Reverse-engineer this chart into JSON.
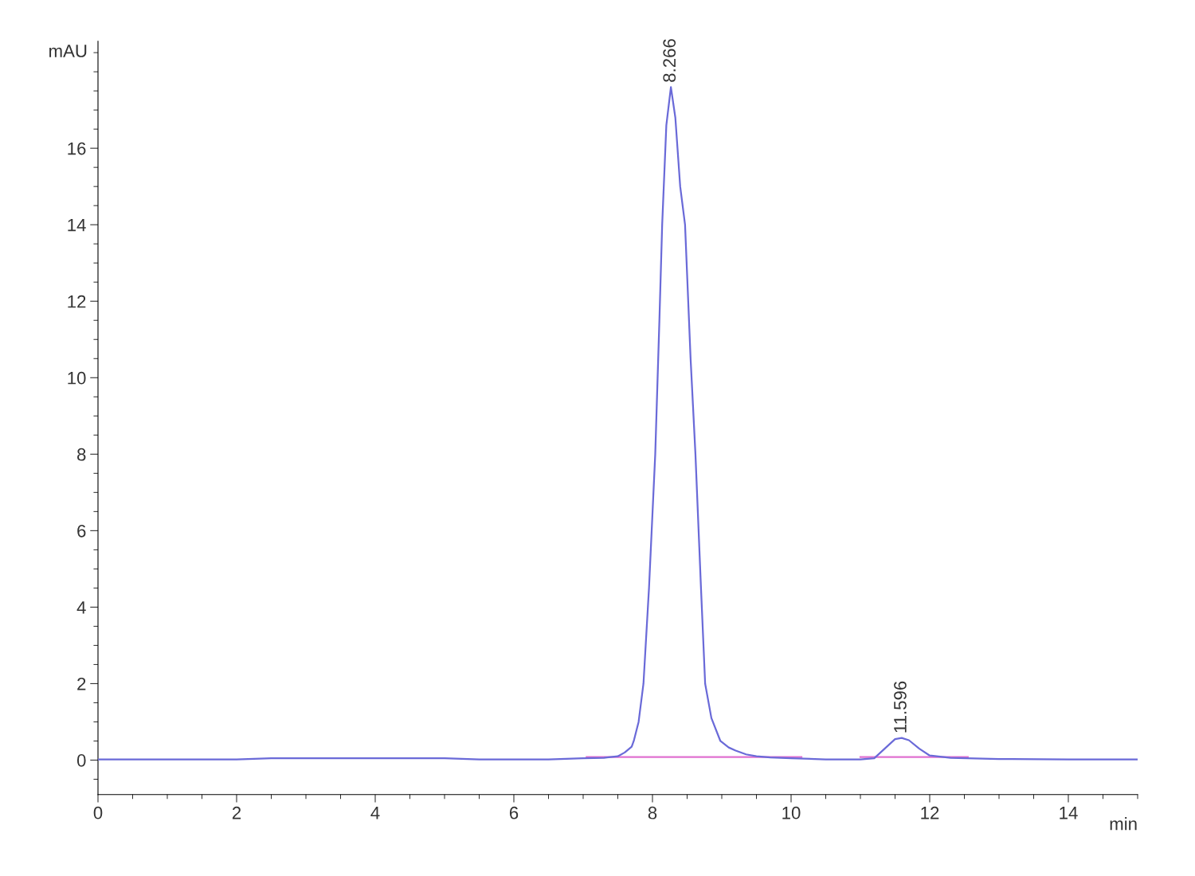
{
  "chart_data": {
    "type": "line",
    "ylabel": "mAU",
    "xlabel": "min",
    "xlim": [
      0,
      15
    ],
    "ylim": [
      -0.9,
      18.8
    ],
    "xticks": [
      0,
      2,
      4,
      6,
      8,
      10,
      12,
      14
    ],
    "yticks": [
      0,
      2,
      4,
      6,
      8,
      10,
      12,
      14,
      16
    ],
    "grid": false,
    "legend": false,
    "marker": "none",
    "line_style": "solid",
    "series": [
      {
        "color": "#6a6ad8",
        "x": [
          0,
          1,
          2,
          2.5,
          3,
          4,
          5,
          5.5,
          6,
          6.5,
          7,
          7.3,
          7.5,
          7.6,
          7.7,
          7.73,
          7.8,
          7.87,
          7.95,
          8.04,
          8.1,
          8.14,
          8.2,
          8.266,
          8.33,
          8.4,
          8.47,
          8.55,
          8.62,
          8.7,
          8.76,
          8.85,
          8.98,
          9.1,
          9.2,
          9.35,
          9.5,
          9.7,
          10,
          10.5,
          11,
          11.2,
          11.35,
          11.5,
          11.596,
          11.7,
          11.85,
          12,
          12.3,
          13,
          14,
          15
        ],
        "values": [
          0.02,
          0.02,
          0.02,
          0.05,
          0.05,
          0.05,
          0.05,
          0.02,
          0.02,
          0.02,
          0.05,
          0.06,
          0.1,
          0.2,
          0.35,
          0.5,
          1.0,
          2.0,
          4.5,
          8.0,
          11.5,
          14.0,
          16.6,
          17.6,
          16.8,
          15.0,
          14.0,
          10.5,
          8.0,
          4.5,
          2.0,
          1.1,
          0.5,
          0.33,
          0.25,
          0.15,
          0.1,
          0.07,
          0.05,
          0.02,
          0.02,
          0.05,
          0.3,
          0.55,
          0.58,
          0.52,
          0.3,
          0.12,
          0.06,
          0.03,
          0.02,
          0.02
        ]
      },
      {
        "color": "#e070d0",
        "x": [
          7.05,
          10.15
        ],
        "values": [
          0.08,
          0.08
        ]
      },
      {
        "color": "#e070d0",
        "x": [
          11.0,
          12.55
        ],
        "values": [
          0.08,
          0.08
        ]
      }
    ],
    "annotations": [
      {
        "text": "8.266",
        "x": 8.266,
        "y": 17.6
      },
      {
        "text": "11.596",
        "x": 11.596,
        "y": 0.58
      }
    ]
  }
}
